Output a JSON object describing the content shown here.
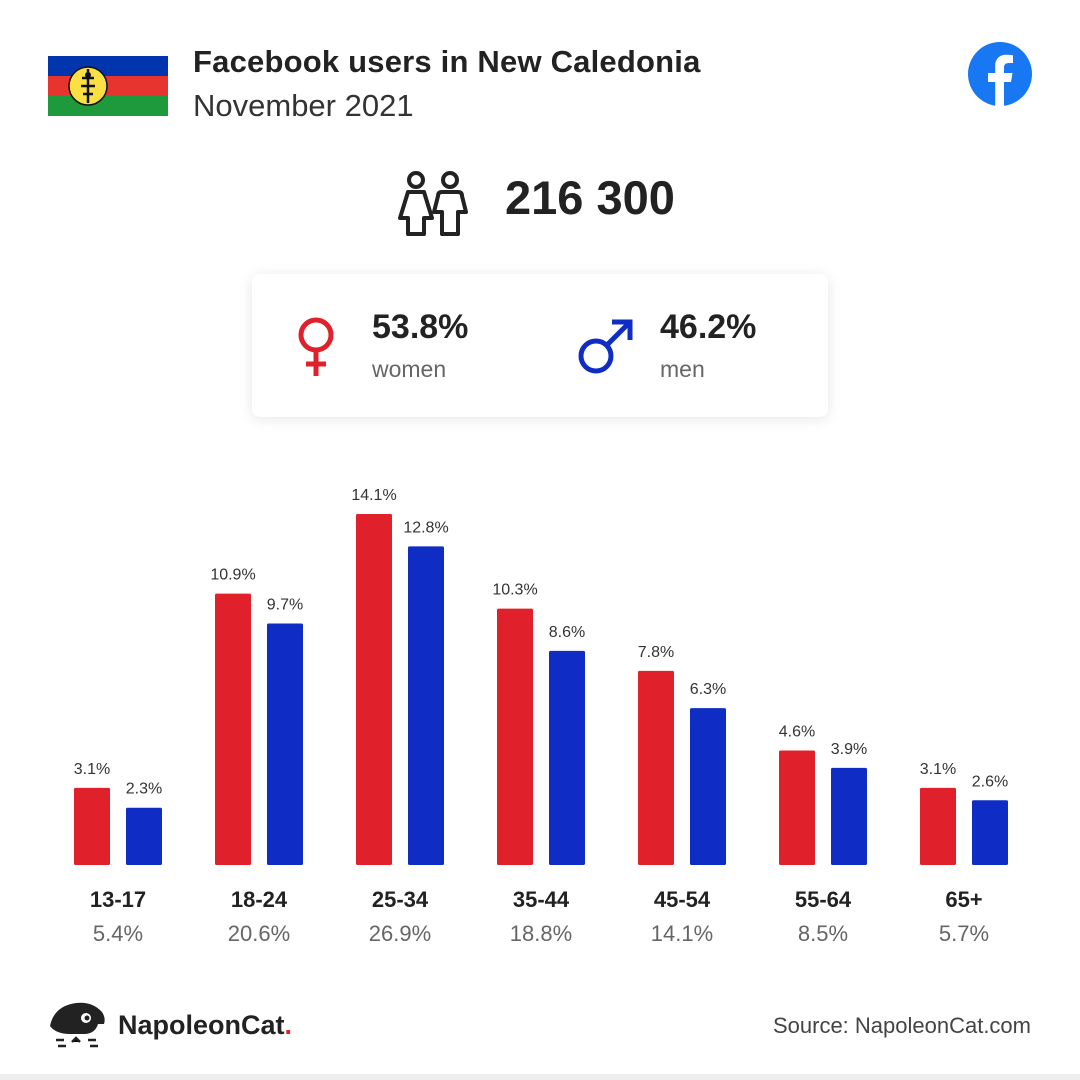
{
  "header": {
    "title": "Facebook users in New Caledonia",
    "subtitle": "November 2021"
  },
  "summary": {
    "total_users": "216 300",
    "women_pct": "53.8%",
    "women_label": "women",
    "men_pct": "46.2%",
    "men_label": "men"
  },
  "colors": {
    "women": "#e0202a",
    "men": "#0f2dc4",
    "facebook": "#1877f2"
  },
  "footer": {
    "brand": "NapoleonCat",
    "brand_dot": ".",
    "source": "Source: NapoleonCat.com"
  },
  "chart_data": {
    "type": "bar",
    "categories": [
      "13-17",
      "18-24",
      "25-34",
      "35-44",
      "45-54",
      "55-64",
      "65+"
    ],
    "category_totals": [
      "5.4%",
      "20.6%",
      "26.9%",
      "18.8%",
      "14.1%",
      "8.5%",
      "5.7%"
    ],
    "series": [
      {
        "name": "women",
        "values": [
          3.1,
          10.9,
          14.1,
          10.3,
          7.8,
          4.6,
          3.1
        ],
        "color": "#e0202a"
      },
      {
        "name": "men",
        "values": [
          2.3,
          9.7,
          12.8,
          8.6,
          6.3,
          3.9,
          2.6
        ],
        "color": "#0f2dc4"
      }
    ],
    "value_suffix": "%",
    "ylim": [
      0,
      14.1
    ],
    "grid": false,
    "legend": "none"
  }
}
